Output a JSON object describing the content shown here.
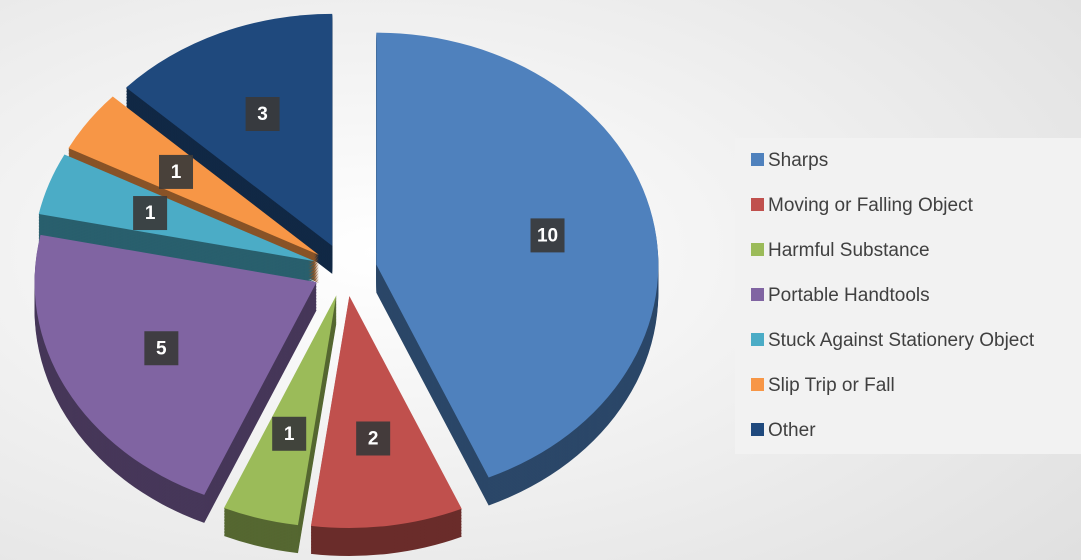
{
  "chart_data": {
    "type": "pie",
    "categories": [
      "Sharps",
      "Moving or Falling Object",
      "Harmful Substance",
      "Portable Handtools",
      "Stuck Against Stationery Object",
      "Slip Trip or Fall",
      "Other"
    ],
    "values": [
      10,
      2,
      1,
      5,
      1,
      1,
      3
    ],
    "colors": [
      "#4f81bd",
      "#c0504d",
      "#9bbb59",
      "#8064a2",
      "#4bacc6",
      "#f79646",
      "#1f497d"
    ],
    "legend": "right"
  }
}
